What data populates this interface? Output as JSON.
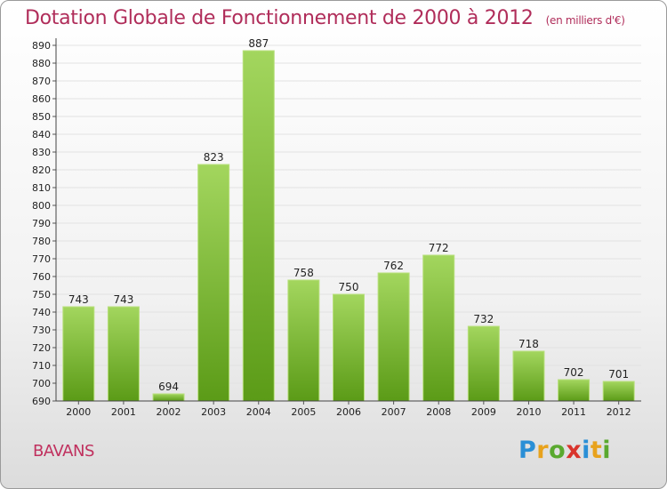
{
  "title": "Dotation Globale de Fonctionnement de 2000 à 2012",
  "unit": "(en milliers d'€)",
  "commune": "BAVANS",
  "logo": "Proxiti",
  "colors": {
    "title": "#b02d5a",
    "bar_light": "#9ed25a",
    "bar_dark": "#5e9e1a",
    "grid": "#e2e2e2"
  },
  "chart_data": {
    "type": "bar",
    "title": "Dotation Globale de Fonctionnement de 2000 à 2012",
    "categories": [
      "2000",
      "2001",
      "2002",
      "2003",
      "2004",
      "2005",
      "2006",
      "2007",
      "2008",
      "2009",
      "2010",
      "2011",
      "2012"
    ],
    "values": [
      743,
      743,
      694,
      823,
      887,
      758,
      750,
      762,
      772,
      732,
      718,
      702,
      701
    ],
    "ylim": [
      690,
      890
    ],
    "yticks": [
      690,
      700,
      710,
      720,
      730,
      740,
      750,
      760,
      770,
      780,
      790,
      800,
      810,
      820,
      830,
      840,
      850,
      860,
      870,
      880,
      890
    ],
    "grid": true,
    "xlabel": "",
    "ylabel": ""
  }
}
